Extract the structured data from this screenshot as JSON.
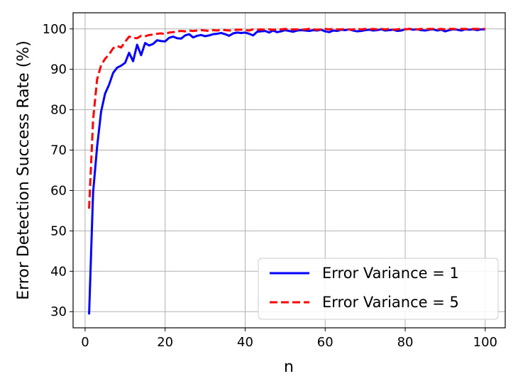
{
  "chart_data": {
    "type": "line",
    "title": "",
    "xlabel": "n",
    "ylabel": "Error Detection Success Rate (%)",
    "xlim": [
      -3,
      105
    ],
    "ylim": [
      26,
      104
    ],
    "xticks": [
      0,
      20,
      40,
      60,
      80,
      100
    ],
    "yticks": [
      30,
      40,
      50,
      60,
      70,
      80,
      90,
      100
    ],
    "grid": true,
    "legend_position": "lower-right",
    "series": [
      {
        "name": "Error Variance = 1",
        "color": "#0000ff",
        "linestyle": "solid",
        "x": [
          1,
          2,
          3,
          4,
          5,
          6,
          7,
          8,
          9,
          10,
          11,
          12,
          13,
          14,
          15,
          16,
          17,
          18,
          19,
          20,
          21,
          22,
          23,
          24,
          25,
          26,
          27,
          28,
          29,
          30,
          31,
          32,
          33,
          34,
          35,
          36,
          37,
          38,
          39,
          40,
          41,
          42,
          43,
          44,
          45,
          46,
          47,
          48,
          49,
          50,
          51,
          52,
          53,
          54,
          55,
          56,
          57,
          58,
          59,
          60,
          61,
          62,
          63,
          64,
          65,
          66,
          67,
          68,
          69,
          70,
          71,
          72,
          73,
          74,
          75,
          76,
          77,
          78,
          79,
          80,
          81,
          82,
          83,
          84,
          85,
          86,
          87,
          88,
          89,
          90,
          91,
          92,
          93,
          94,
          95,
          96,
          97,
          98,
          99,
          100
        ],
        "y": [
          29.3,
          59.5,
          70.8,
          79.5,
          84.0,
          86.2,
          89.1,
          90.4,
          90.9,
          91.6,
          94.1,
          92.0,
          96.1,
          93.5,
          96.5,
          95.9,
          96.3,
          97.2,
          97.0,
          96.9,
          97.8,
          98.1,
          97.7,
          97.6,
          98.4,
          98.7,
          97.9,
          98.3,
          98.5,
          98.2,
          98.4,
          98.7,
          98.8,
          99.0,
          98.7,
          98.3,
          98.9,
          99.1,
          99.0,
          99.1,
          98.8,
          98.4,
          99.3,
          99.4,
          99.5,
          99.1,
          99.6,
          99.2,
          99.4,
          99.7,
          99.5,
          99.3,
          99.6,
          99.7,
          99.6,
          99.5,
          99.7,
          99.6,
          99.8,
          99.4,
          99.2,
          99.6,
          99.5,
          99.8,
          99.7,
          99.9,
          99.6,
          99.4,
          99.5,
          99.7,
          99.8,
          99.6,
          99.7,
          99.9,
          99.6,
          99.7,
          99.8,
          99.5,
          99.6,
          99.9,
          100.0,
          99.8,
          99.9,
          99.7,
          99.6,
          99.8,
          99.9,
          99.6,
          99.8,
          99.4,
          99.7,
          99.9,
          99.8,
          99.6,
          99.9,
          99.8,
          99.9,
          99.7,
          99.9,
          99.9
        ]
      },
      {
        "name": "Error Variance = 5",
        "color": "#ff0000",
        "linestyle": "dashed",
        "x": [
          1,
          2,
          3,
          4,
          5,
          6,
          7,
          8,
          9,
          10,
          11,
          12,
          13,
          14,
          15,
          16,
          17,
          18,
          19,
          20,
          21,
          22,
          23,
          24,
          25,
          26,
          27,
          28,
          29,
          30,
          31,
          32,
          33,
          34,
          35,
          36,
          37,
          38,
          39,
          40,
          41,
          42,
          43,
          44,
          45,
          46,
          47,
          48,
          49,
          50,
          51,
          52,
          53,
          54,
          55,
          56,
          57,
          58,
          59,
          60,
          61,
          62,
          63,
          64,
          65,
          66,
          67,
          68,
          69,
          70,
          71,
          72,
          73,
          74,
          75,
          76,
          77,
          78,
          79,
          80,
          81,
          82,
          83,
          84,
          85,
          86,
          87,
          88,
          89,
          90,
          91,
          92,
          93,
          94,
          95,
          96,
          97,
          98,
          99,
          100
        ],
        "y": [
          55.5,
          77.5,
          87.5,
          91.0,
          92.6,
          93.7,
          95.2,
          95.8,
          95.4,
          96.8,
          98.1,
          97.8,
          97.7,
          98.3,
          98.2,
          98.5,
          98.6,
          98.8,
          98.9,
          98.7,
          99.1,
          99.2,
          99.4,
          99.5,
          99.4,
          99.6,
          99.5,
          99.6,
          99.7,
          99.6,
          99.5,
          99.7,
          99.6,
          99.8,
          99.7,
          99.6,
          99.7,
          99.8,
          99.8,
          99.7,
          99.6,
          99.9,
          99.8,
          99.9,
          99.8,
          99.9,
          99.8,
          99.9,
          99.9,
          100.0,
          99.8,
          99.9,
          99.9,
          99.8,
          99.9,
          100.0,
          99.9,
          99.8,
          99.9,
          100.0,
          99.9,
          100.0,
          99.9,
          99.9,
          100.0,
          99.8,
          99.9,
          100.0,
          99.9,
          100.0,
          99.9,
          100.0,
          99.9,
          100.0,
          99.9,
          100.0,
          99.8,
          99.9,
          100.0,
          99.9,
          100.0,
          100.0,
          99.9,
          100.0,
          99.9,
          100.0,
          100.0,
          99.9,
          100.0,
          99.9,
          100.0,
          100.0,
          99.9,
          100.0,
          100.0,
          99.9,
          100.0,
          100.0,
          100.0,
          100.0
        ]
      }
    ]
  }
}
